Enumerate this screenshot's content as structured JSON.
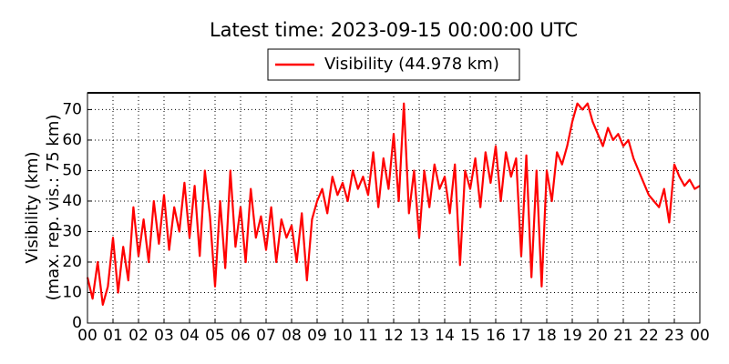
{
  "chart_data": {
    "type": "line",
    "title": "Latest time: 2023-09-15 00:00:00 UTC",
    "y_label": [
      "Visibility (km)",
      "(max. rep. vis.: 75 km)"
    ],
    "x": [
      0,
      0.2,
      0.4,
      0.6,
      0.8,
      1,
      1.2,
      1.4,
      1.6,
      1.8,
      2,
      2.2,
      2.4,
      2.6,
      2.8,
      3,
      3.2,
      3.4,
      3.6,
      3.8,
      4,
      4.2,
      4.4,
      4.6,
      4.8,
      5,
      5.2,
      5.4,
      5.6,
      5.8,
      6,
      6.2,
      6.4,
      6.6,
      6.8,
      7,
      7.2,
      7.4,
      7.6,
      7.8,
      8,
      8.2,
      8.4,
      8.6,
      8.8,
      9,
      9.2,
      9.4,
      9.6,
      9.8,
      10,
      10.2,
      10.4,
      10.6,
      10.8,
      11,
      11.2,
      11.4,
      11.6,
      11.8,
      12,
      12.2,
      12.4,
      12.6,
      12.8,
      13,
      13.2,
      13.4,
      13.6,
      13.8,
      14,
      14.2,
      14.4,
      14.6,
      14.8,
      15,
      15.2,
      15.4,
      15.6,
      15.8,
      16,
      16.2,
      16.4,
      16.6,
      16.8,
      17,
      17.2,
      17.4,
      17.6,
      17.8,
      18,
      18.2,
      18.4,
      18.6,
      18.8,
      19,
      19.2,
      19.4,
      19.6,
      19.8,
      20,
      20.2,
      20.4,
      20.6,
      20.8,
      21,
      21.2,
      21.4,
      21.6,
      21.8,
      22,
      22.2,
      22.4,
      22.6,
      22.8,
      23,
      23.2,
      23.4,
      23.6,
      23.8,
      24
    ],
    "series": [
      {
        "name": "Visibility (44.978 km)",
        "color": "#ff0000",
        "values": [
          15,
          8,
          20,
          6,
          12,
          28,
          10,
          25,
          14,
          38,
          22,
          34,
          20,
          40,
          26,
          42,
          24,
          38,
          30,
          46,
          28,
          45,
          22,
          50,
          35,
          12,
          40,
          18,
          50,
          25,
          38,
          20,
          44,
          28,
          35,
          24,
          38,
          20,
          34,
          28,
          32,
          20,
          36,
          14,
          34,
          40,
          44,
          36,
          48,
          42,
          46,
          40,
          50,
          44,
          48,
          42,
          56,
          38,
          54,
          44,
          62,
          40,
          72,
          36,
          50,
          28,
          50,
          38,
          52,
          44,
          48,
          36,
          52,
          19,
          50,
          44,
          54,
          38,
          56,
          46,
          58,
          40,
          56,
          48,
          54,
          22,
          55,
          15,
          50,
          12,
          50,
          40,
          56,
          52,
          58,
          66,
          72,
          70,
          72,
          66,
          62,
          58,
          64,
          60,
          62,
          58,
          60,
          54,
          50,
          46,
          42,
          40,
          38,
          44,
          33,
          52,
          48,
          45,
          47,
          44,
          45
        ]
      }
    ],
    "xlim": [
      0,
      24
    ],
    "xticks": [
      {
        "value": 0,
        "label": "00"
      },
      {
        "value": 1,
        "label": "01"
      },
      {
        "value": 2,
        "label": "02"
      },
      {
        "value": 3,
        "label": "03"
      },
      {
        "value": 4,
        "label": "04"
      },
      {
        "value": 5,
        "label": "05"
      },
      {
        "value": 6,
        "label": "06"
      },
      {
        "value": 7,
        "label": "07"
      },
      {
        "value": 8,
        "label": "08"
      },
      {
        "value": 9,
        "label": "09"
      },
      {
        "value": 10,
        "label": "10"
      },
      {
        "value": 11,
        "label": "11"
      },
      {
        "value": 12,
        "label": "12"
      },
      {
        "value": 13,
        "label": "13"
      },
      {
        "value": 14,
        "label": "14"
      },
      {
        "value": 15,
        "label": "15"
      },
      {
        "value": 16,
        "label": "16"
      },
      {
        "value": 17,
        "label": "17"
      },
      {
        "value": 18,
        "label": "18"
      },
      {
        "value": 19,
        "label": "19"
      },
      {
        "value": 20,
        "label": "20"
      },
      {
        "value": 21,
        "label": "21"
      },
      {
        "value": 22,
        "label": "22"
      },
      {
        "value": 23,
        "label": "23"
      },
      {
        "value": 24,
        "label": "00"
      }
    ],
    "ylim": [
      0,
      75.5
    ],
    "yticks": [
      0,
      10,
      20,
      30,
      40,
      50,
      60,
      70
    ],
    "grid": true
  }
}
